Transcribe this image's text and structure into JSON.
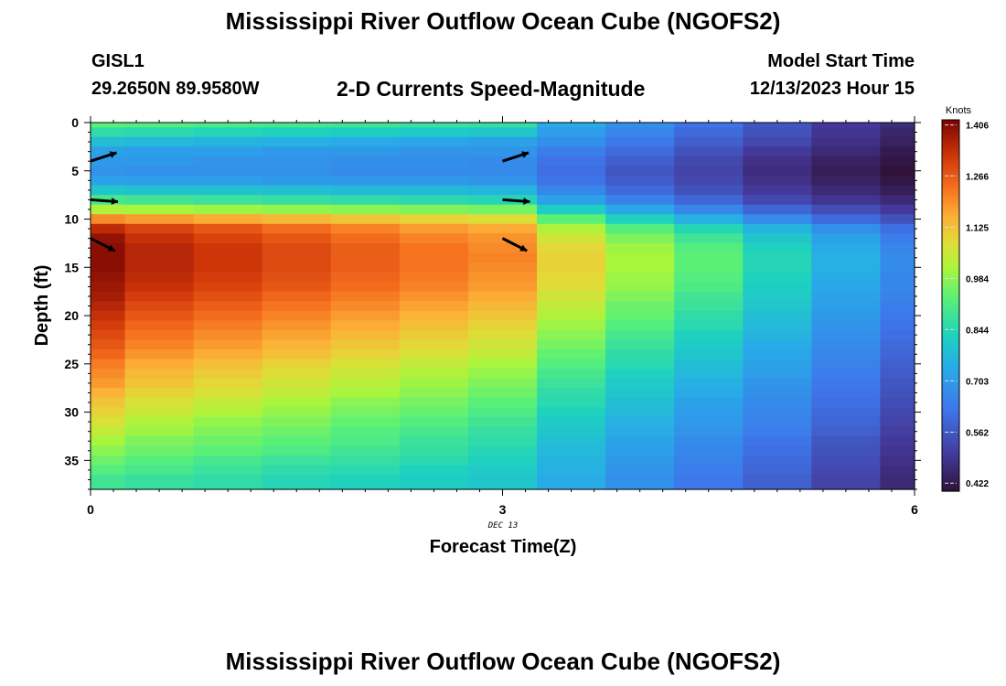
{
  "header": {
    "title": "Mississippi River Outflow Ocean Cube (NGOFS2)",
    "station": "GISL1",
    "coordinates": "29.2650N  89.9580W",
    "subtitle": "2-D Currents Speed-Magnitude",
    "model_start_label": "Model Start Time",
    "model_start_value": "12/13/2023 Hour 15"
  },
  "footer": {
    "title": "Mississippi River Outflow Ocean Cube (NGOFS2)"
  },
  "chart_data": {
    "type": "heatmap",
    "xlabel": "Forecast Time(Z)",
    "ylabel": "Depth (ft)",
    "xlim": [
      0,
      6
    ],
    "ylim": [
      38,
      0
    ],
    "x_ticks": [
      "0",
      "3",
      "6"
    ],
    "y_ticks": [
      "0",
      "5",
      "10",
      "15",
      "20",
      "25",
      "30",
      "35"
    ],
    "date_label": "DEC 13",
    "colorbar": {
      "unit": "Knots",
      "ticks": [
        "1.406",
        "1.266",
        "1.125",
        "0.984",
        "0.844",
        "0.703",
        "0.562",
        "0.422"
      ],
      "range": [
        0.4,
        1.42
      ]
    },
    "time_columns": [
      0,
      0.5,
      1,
      1.5,
      2,
      2.5,
      3,
      3.5,
      4,
      4.5,
      5,
      5.5,
      6
    ],
    "depth_rows": [
      0,
      1,
      2,
      3,
      4,
      5,
      6,
      7,
      8,
      9,
      10,
      11,
      12,
      13,
      14,
      15,
      16,
      17,
      18,
      19,
      20,
      21,
      22,
      23,
      24,
      25,
      26,
      27,
      28,
      29,
      30,
      31,
      32,
      33,
      34,
      35,
      36,
      37
    ],
    "speed_knots": [
      [
        0.93,
        0.92,
        0.91,
        0.9,
        0.89,
        0.88,
        0.87,
        0.74,
        0.68,
        0.62,
        0.56,
        0.5,
        0.47
      ],
      [
        0.86,
        0.85,
        0.84,
        0.83,
        0.82,
        0.81,
        0.8,
        0.71,
        0.66,
        0.6,
        0.55,
        0.49,
        0.45
      ],
      [
        0.78,
        0.77,
        0.76,
        0.75,
        0.74,
        0.73,
        0.72,
        0.68,
        0.63,
        0.58,
        0.53,
        0.48,
        0.44
      ],
      [
        0.72,
        0.71,
        0.71,
        0.7,
        0.7,
        0.69,
        0.69,
        0.64,
        0.6,
        0.55,
        0.5,
        0.46,
        0.42
      ],
      [
        0.7,
        0.7,
        0.69,
        0.69,
        0.68,
        0.68,
        0.67,
        0.62,
        0.58,
        0.53,
        0.48,
        0.44,
        0.41
      ],
      [
        0.69,
        0.68,
        0.68,
        0.68,
        0.67,
        0.67,
        0.67,
        0.61,
        0.56,
        0.52,
        0.47,
        0.43,
        0.4
      ],
      [
        0.72,
        0.71,
        0.71,
        0.7,
        0.7,
        0.7,
        0.69,
        0.62,
        0.57,
        0.53,
        0.48,
        0.44,
        0.41
      ],
      [
        0.8,
        0.79,
        0.79,
        0.78,
        0.77,
        0.77,
        0.76,
        0.66,
        0.6,
        0.55,
        0.5,
        0.46,
        0.43
      ],
      [
        0.9,
        0.89,
        0.88,
        0.87,
        0.86,
        0.85,
        0.84,
        0.72,
        0.65,
        0.59,
        0.53,
        0.49,
        0.46
      ],
      [
        1.02,
        1.01,
        1.0,
        0.99,
        0.98,
        0.97,
        0.96,
        0.82,
        0.73,
        0.66,
        0.59,
        0.54,
        0.5
      ],
      [
        1.2,
        1.18,
        1.16,
        1.14,
        1.12,
        1.1,
        1.08,
        0.93,
        0.83,
        0.75,
        0.67,
        0.6,
        0.55
      ],
      [
        1.34,
        1.3,
        1.27,
        1.24,
        1.21,
        1.18,
        1.16,
        1.02,
        0.92,
        0.84,
        0.76,
        0.68,
        0.61
      ],
      [
        1.39,
        1.33,
        1.3,
        1.27,
        1.24,
        1.21,
        1.19,
        1.06,
        0.97,
        0.89,
        0.8,
        0.72,
        0.64
      ],
      [
        1.4,
        1.35,
        1.32,
        1.29,
        1.26,
        1.23,
        1.2,
        1.09,
        1.0,
        0.92,
        0.83,
        0.74,
        0.66
      ],
      [
        1.4,
        1.35,
        1.32,
        1.29,
        1.26,
        1.23,
        1.21,
        1.1,
        1.01,
        0.93,
        0.84,
        0.75,
        0.67
      ],
      [
        1.4,
        1.35,
        1.32,
        1.29,
        1.26,
        1.23,
        1.2,
        1.1,
        1.01,
        0.93,
        0.84,
        0.75,
        0.67
      ],
      [
        1.39,
        1.34,
        1.31,
        1.28,
        1.25,
        1.22,
        1.19,
        1.09,
        1.0,
        0.92,
        0.83,
        0.74,
        0.66
      ],
      [
        1.38,
        1.33,
        1.3,
        1.27,
        1.24,
        1.21,
        1.18,
        1.08,
        0.99,
        0.91,
        0.82,
        0.73,
        0.66
      ],
      [
        1.37,
        1.31,
        1.28,
        1.25,
        1.22,
        1.19,
        1.16,
        1.06,
        0.97,
        0.89,
        0.81,
        0.72,
        0.65
      ],
      [
        1.35,
        1.29,
        1.26,
        1.23,
        1.2,
        1.17,
        1.14,
        1.04,
        0.95,
        0.88,
        0.8,
        0.71,
        0.64
      ],
      [
        1.33,
        1.27,
        1.24,
        1.21,
        1.18,
        1.15,
        1.12,
        1.02,
        0.94,
        0.86,
        0.78,
        0.7,
        0.63
      ],
      [
        1.31,
        1.25,
        1.22,
        1.19,
        1.16,
        1.13,
        1.1,
        1.0,
        0.92,
        0.85,
        0.77,
        0.69,
        0.62
      ],
      [
        1.29,
        1.23,
        1.2,
        1.17,
        1.14,
        1.11,
        1.08,
        0.98,
        0.9,
        0.83,
        0.76,
        0.68,
        0.61
      ],
      [
        1.27,
        1.21,
        1.18,
        1.15,
        1.12,
        1.09,
        1.06,
        0.96,
        0.88,
        0.81,
        0.74,
        0.67,
        0.6
      ],
      [
        1.25,
        1.19,
        1.16,
        1.13,
        1.1,
        1.07,
        1.04,
        0.94,
        0.86,
        0.8,
        0.73,
        0.66,
        0.59
      ],
      [
        1.22,
        1.16,
        1.13,
        1.1,
        1.07,
        1.04,
        1.01,
        0.92,
        0.85,
        0.78,
        0.72,
        0.65,
        0.58
      ],
      [
        1.2,
        1.14,
        1.11,
        1.08,
        1.05,
        1.02,
        0.99,
        0.9,
        0.83,
        0.77,
        0.71,
        0.64,
        0.57
      ],
      [
        1.18,
        1.12,
        1.09,
        1.06,
        1.03,
        1.0,
        0.97,
        0.88,
        0.81,
        0.75,
        0.69,
        0.63,
        0.56
      ],
      [
        1.15,
        1.1,
        1.07,
        1.04,
        1.01,
        0.98,
        0.95,
        0.86,
        0.8,
        0.74,
        0.68,
        0.62,
        0.55
      ],
      [
        1.12,
        1.07,
        1.04,
        1.01,
        0.98,
        0.96,
        0.93,
        0.85,
        0.78,
        0.72,
        0.67,
        0.61,
        0.54
      ],
      [
        1.1,
        1.05,
        1.02,
        0.99,
        0.96,
        0.94,
        0.91,
        0.83,
        0.77,
        0.71,
        0.66,
        0.6,
        0.53
      ],
      [
        1.07,
        1.02,
        0.99,
        0.97,
        0.94,
        0.92,
        0.89,
        0.81,
        0.75,
        0.7,
        0.65,
        0.59,
        0.52
      ],
      [
        1.04,
        1.0,
        0.97,
        0.95,
        0.92,
        0.9,
        0.87,
        0.8,
        0.74,
        0.69,
        0.64,
        0.58,
        0.51
      ],
      [
        1.01,
        0.97,
        0.95,
        0.93,
        0.91,
        0.88,
        0.86,
        0.78,
        0.72,
        0.67,
        0.62,
        0.56,
        0.5
      ],
      [
        0.98,
        0.95,
        0.93,
        0.91,
        0.89,
        0.87,
        0.84,
        0.77,
        0.71,
        0.66,
        0.61,
        0.55,
        0.49
      ],
      [
        0.95,
        0.92,
        0.9,
        0.88,
        0.87,
        0.85,
        0.83,
        0.76,
        0.7,
        0.65,
        0.6,
        0.54,
        0.48
      ],
      [
        0.92,
        0.9,
        0.88,
        0.86,
        0.85,
        0.83,
        0.81,
        0.75,
        0.69,
        0.64,
        0.59,
        0.53,
        0.47
      ],
      [
        0.89,
        0.87,
        0.86,
        0.84,
        0.83,
        0.82,
        0.8,
        0.74,
        0.68,
        0.63,
        0.58,
        0.52,
        0.46
      ]
    ],
    "current_vectors": [
      {
        "time": 0,
        "depth": 4,
        "direction": "east-northeast"
      },
      {
        "time": 0,
        "depth": 8,
        "direction": "east"
      },
      {
        "time": 0,
        "depth": 12,
        "direction": "east-southeast"
      },
      {
        "time": 3,
        "depth": 4,
        "direction": "east-northeast"
      },
      {
        "time": 3,
        "depth": 8,
        "direction": "east"
      },
      {
        "time": 3,
        "depth": 12,
        "direction": "east-southeast"
      }
    ]
  }
}
